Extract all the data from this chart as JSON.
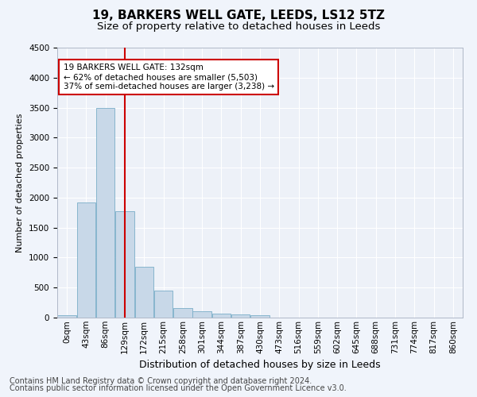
{
  "title1": "19, BARKERS WELL GATE, LEEDS, LS12 5TZ",
  "title2": "Size of property relative to detached houses in Leeds",
  "xlabel": "Distribution of detached houses by size in Leeds",
  "ylabel": "Number of detached properties",
  "bin_labels": [
    "0sqm",
    "43sqm",
    "86sqm",
    "129sqm",
    "172sqm",
    "215sqm",
    "258sqm",
    "301sqm",
    "344sqm",
    "387sqm",
    "430sqm",
    "473sqm",
    "516sqm",
    "559sqm",
    "602sqm",
    "645sqm",
    "688sqm",
    "731sqm",
    "774sqm",
    "817sqm",
    "860sqm"
  ],
  "bar_values": [
    40,
    1920,
    3500,
    1780,
    850,
    450,
    155,
    100,
    65,
    55,
    40,
    0,
    0,
    0,
    0,
    0,
    0,
    0,
    0,
    0,
    0
  ],
  "bar_color": "#c8d8e8",
  "bar_edgecolor": "#7aaec8",
  "vline_color": "#cc0000",
  "vline_x": 3.0,
  "annotation_text": "19 BARKERS WELL GATE: 132sqm\n← 62% of detached houses are smaller (5,503)\n37% of semi-detached houses are larger (3,238) →",
  "annotation_box_color": "#ffffff",
  "annotation_box_edgecolor": "#cc0000",
  "ylim": [
    0,
    4500
  ],
  "yticks": [
    0,
    500,
    1000,
    1500,
    2000,
    2500,
    3000,
    3500,
    4000,
    4500
  ],
  "footer1": "Contains HM Land Registry data © Crown copyright and database right 2024.",
  "footer2": "Contains public sector information licensed under the Open Government Licence v3.0.",
  "bg_color": "#f0f4fb",
  "plot_bg_color": "#edf1f8",
  "grid_color": "#ffffff",
  "title1_fontsize": 11,
  "title2_fontsize": 9.5,
  "xlabel_fontsize": 9,
  "ylabel_fontsize": 8,
  "tick_fontsize": 7.5,
  "footer_fontsize": 7
}
